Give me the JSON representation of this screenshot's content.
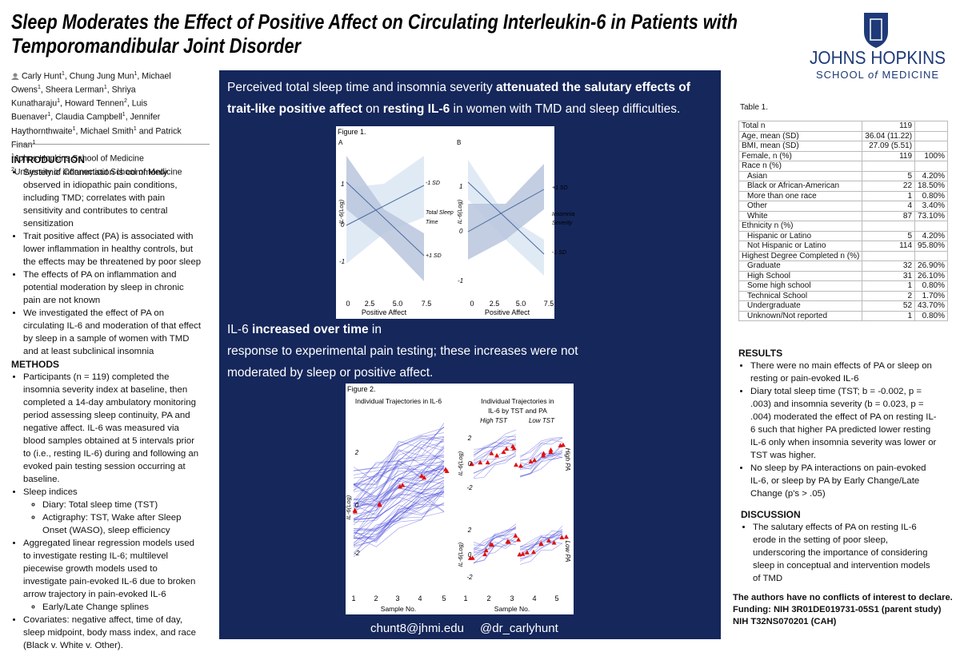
{
  "header": {
    "title": [
      "Sleep Moderates the Effect of Positive Affect on Circulating Interleukin-6 in Patients with",
      "Temporomandibular Joint Disorder"
    ],
    "logo": {
      "name": "JOHNS HOPKINS",
      "school": [
        "SCHOOL",
        "of",
        "MEDICINE"
      ]
    }
  },
  "authors": [
    {
      "name": "Carly Hunt",
      "aff": "1",
      "sep": ", "
    },
    {
      "name": "Chung Jung Mun",
      "aff": "1",
      "sep": ", "
    },
    {
      "name": "Michael Owens",
      "aff": "1",
      "sep": ", "
    },
    {
      "name": "Sheera Lerman",
      "aff": "1",
      "sep": ", "
    },
    {
      "name": "Shriya Kunatharaju",
      "aff": "1",
      "sep": ", "
    },
    {
      "name": "Howard Tennen",
      "aff": "2",
      "sep": ", "
    },
    {
      "name": "Luis Buenaver",
      "aff": "1",
      "sep": ", "
    },
    {
      "name": "Claudia Campbell",
      "aff": "1",
      "sep": ", "
    },
    {
      "name": "Jennifer Haythornthwaite",
      "aff": "1",
      "sep": ", "
    },
    {
      "name": "Michael Smith",
      "aff": "1",
      "sep": " and "
    },
    {
      "name": "Patrick Finan",
      "aff": "1"
    }
  ],
  "affiliations": [
    {
      "mark": "1",
      "text": "Johns Hopkins School of Medicine"
    },
    {
      "mark": "2",
      "text": "University of Connecticut School of Medicine"
    }
  ],
  "introduction": {
    "heading": "INTRODUCTION",
    "bullets": [
      {
        "text": "Systemic inflammation is commonly observed in idiopathic pain conditions, including TMD; correlates with pain sensitivity and contributes to central sensitization"
      },
      {
        "text": "Trait positive affect (PA) is associated with lower inflammation in healthy controls, but the effects may be threatened by poor sleep"
      },
      {
        "text": "The effects of PA on inflammation and potential moderation by sleep in chronic pain are not known"
      },
      {
        "text": "We investigated the effect of PA on circulating IL-6 and moderation of that effect by sleep in a sample of women with TMD and at least subclinical insomnia"
      }
    ]
  },
  "methods": {
    "heading": "METHODS",
    "bullets": [
      {
        "text": "Participants (n = 119) completed the insomnia severity index at baseline, then completed a 14-day ambulatory monitoring period assessing sleep continuity, PA and negative affect. IL-6 was measured via blood samples obtained at 5 intervals prior to (i.e., resting IL-6) during and following an evoked pain testing session occurring at baseline."
      },
      {
        "text": "Sleep indices",
        "sub": [
          "Diary: Total sleep time (TST)",
          "Actigraphy: TST, Wake after Sleep Onset (WASO), sleep efficiency"
        ]
      },
      {
        "text": "Aggregated linear regression models used to investigate resting IL-6; multilevel piecewise growth models used to investigate pain-evoked IL-6 due to broken arrow trajectory in pain-evoked IL-6",
        "sub": [
          "Early/Late Change splines"
        ]
      },
      {
        "text": "Covariates: negative affect, time of day, sleep midpoint, body mass index, and race (Black v. White v. Other)."
      }
    ]
  },
  "headline1": [
    [
      {
        "text": "Perceived total sleep time and insomnia severity "
      },
      {
        "text": "attenuated the salutary effects of",
        "bold": true
      }
    ],
    [
      {
        "text": "trait-like positive affect",
        "bold": true
      },
      {
        "text": " on "
      },
      {
        "text": "resting IL-6",
        "bold": true
      },
      {
        "text": " in women with TMD and sleep difficulties."
      }
    ]
  ],
  "headline2": [
    [
      {
        "text": "IL-6 "
      },
      {
        "text": "increased over time",
        "bold": true
      },
      {
        "text": " in"
      }
    ],
    [
      {
        "text": "response to experimental pain testing; these increases were not"
      }
    ],
    [
      {
        "text": "moderated by sleep or positive affect."
      }
    ]
  ],
  "figure1": {
    "caption": "Figure 1.",
    "y_label": "IL-6(Log)",
    "x_label": "Positive Affect",
    "x_ticks": [
      "0",
      "2.5",
      "5.0",
      "7.5"
    ],
    "panels": [
      {
        "label": "A",
        "y_ticks": [
          "1",
          "0",
          "-1"
        ],
        "line_labels": [
          "-1 SD",
          "+1 SD"
        ],
        "moderator": [
          "Total Sleep",
          "Time"
        ]
      },
      {
        "label": "B",
        "y_ticks": [
          "1",
          "0",
          "-1"
        ],
        "line_labels": [
          "+1 SD",
          "-1 SD"
        ],
        "moderator": [
          "Insomnia",
          "Severity"
        ]
      }
    ]
  },
  "figure2": {
    "caption": "Figure 2.",
    "left_title": "Individual Trajectories in IL-6",
    "right_title": [
      "Individual Trajectories in",
      "IL-6 by TST and PA"
    ],
    "columns": [
      "High TST",
      "Low TST"
    ],
    "rows": [
      "High PA",
      "Low PA"
    ],
    "y_label": "IL-6(Log)",
    "y_ticks": [
      "2",
      "0",
      "-2"
    ],
    "x_ticks": [
      "1",
      "2",
      "3",
      "4",
      "5"
    ],
    "x_label": "Sample No."
  },
  "contact": {
    "email": "chunt8@jhmi.edu",
    "handle": "@dr_carlyhunt"
  },
  "table": {
    "caption": "Table 1.",
    "rows": [
      {
        "label": "Total n",
        "n": "119"
      },
      {
        "label": "Age, mean (SD)",
        "n": "36.04 (11.22)"
      },
      {
        "label": "BMI, mean (SD)",
        "n": "27.09 (5.51)"
      },
      {
        "label": "Female, n (%)",
        "n": "119",
        "pct": "100%"
      },
      {
        "label": "Race n (%)"
      },
      {
        "label": "Asian",
        "n": "5",
        "pct": "4.20%",
        "indent": true
      },
      {
        "label": "Black or African-American",
        "n": "22",
        "pct": "18.50%",
        "indent": true
      },
      {
        "label": "More than one race",
        "n": "1",
        "pct": "0.80%",
        "indent": true
      },
      {
        "label": "Other",
        "n": "4",
        "pct": "3.40%",
        "indent": true
      },
      {
        "label": "White",
        "n": "87",
        "pct": "73.10%",
        "indent": true
      },
      {
        "label": "Ethnicity n (%)"
      },
      {
        "label": "Hispanic or Latino",
        "n": "5",
        "pct": "4.20%",
        "indent": true
      },
      {
        "label": "Not Hispanic or Latino",
        "n": "114",
        "pct": "95.80%",
        "indent": true
      },
      {
        "label": "Highest Degree Completed n (%)"
      },
      {
        "label": "Graduate",
        "n": "32",
        "pct": "26.90%",
        "indent": true
      },
      {
        "label": "High School",
        "n": "31",
        "pct": "26.10%",
        "indent": true
      },
      {
        "label": "Some high school",
        "n": "1",
        "pct": "0.80%",
        "indent": true
      },
      {
        "label": "Technical School",
        "n": "2",
        "pct": "1.70%",
        "indent": true
      },
      {
        "label": "Undergraduate",
        "n": "52",
        "pct": "43.70%",
        "indent": true
      },
      {
        "label": "Unknown/Not reported",
        "n": "1",
        "pct": "0.80%",
        "indent": true
      }
    ]
  },
  "results": {
    "heading": "RESULTS",
    "bullets": [
      {
        "text": "There were no main effects of PA or sleep on resting or pain-evoked IL-6"
      },
      {
        "text": "Diary total sleep time (TST; b = -0.002, p = .003) and insomnia severity (b = 0.023, p = .004) moderated the effect of PA on resting IL-6 such that higher PA predicted lower resting IL-6 only when insomnia severity was lower or TST was higher."
      },
      {
        "text": "No sleep by PA interactions on pain-evoked IL-6, or sleep by PA by Early Change/Late Change (p's > .05)"
      }
    ]
  },
  "discussion": {
    "heading": "DISCUSSION",
    "bullets": [
      {
        "text": "The salutary effects of PA on resting IL-6 erode in the setting of poor sleep, underscoring the importance of considering sleep in conceptual and intervention models of TMD"
      }
    ]
  },
  "disclosure": [
    "The authors have no conflicts of interest to declare.",
    "Funding: NIH 3R01DE019731-05S1 (parent study) NIH T32NS070201 (CAH)"
  ]
}
